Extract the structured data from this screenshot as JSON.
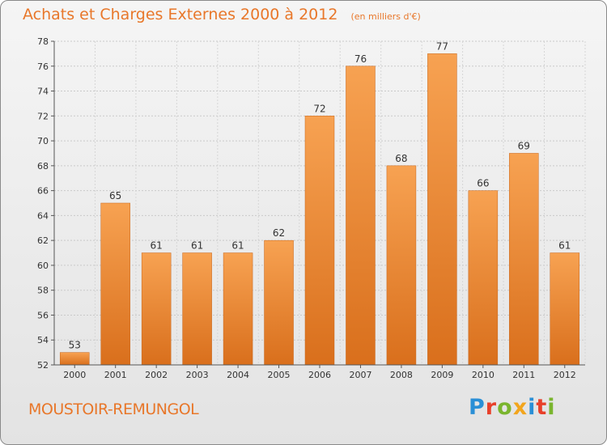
{
  "chart_data": {
    "type": "bar",
    "title": "Achats et Charges Externes 2000 à 2012",
    "unit_label": "(en milliers d'€)",
    "categories": [
      "2000",
      "2001",
      "2002",
      "2003",
      "2004",
      "2005",
      "2006",
      "2007",
      "2008",
      "2009",
      "2010",
      "2011",
      "2012"
    ],
    "values": [
      53,
      65,
      61,
      61,
      61,
      62,
      72,
      76,
      68,
      77,
      66,
      69,
      61
    ],
    "ylim": [
      52,
      78
    ],
    "yticks": [
      52,
      54,
      56,
      58,
      60,
      62,
      64,
      66,
      68,
      70,
      72,
      74,
      76,
      78
    ],
    "grid": true,
    "bar_color": "#f0923a"
  },
  "location": "MOUSTOIR-REMUNGOL",
  "logo": {
    "text": "Proxiti",
    "letters": [
      {
        "ch": "P",
        "color": "#2a8fd6"
      },
      {
        "ch": "r",
        "color": "#e8402a"
      },
      {
        "ch": "o",
        "color": "#7ab52e"
      },
      {
        "ch": "x",
        "color": "#f2a51d"
      },
      {
        "ch": "i",
        "color": "#2a8fd6"
      },
      {
        "ch": "t",
        "color": "#e8402a"
      },
      {
        "ch": "i",
        "color": "#7ab52e"
      }
    ]
  }
}
